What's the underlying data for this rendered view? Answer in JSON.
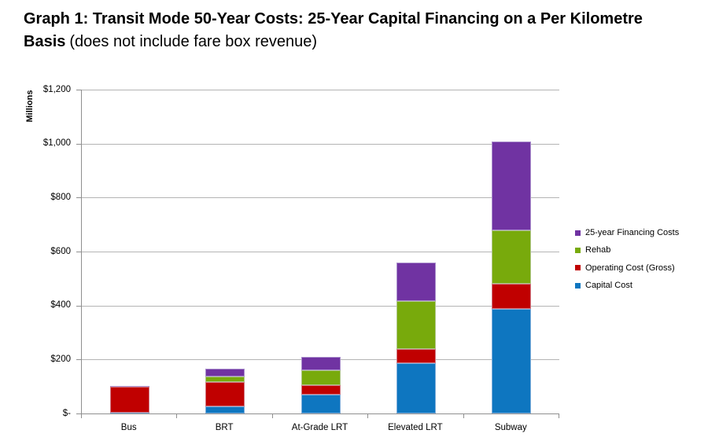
{
  "page": {
    "title_bold": "Graph 1: Transit Mode 50-Year Costs: 25-Year Capital Financing on a Per Kilometre Basis",
    "title_note": "(does not include fare box revenue)"
  },
  "chart_data": {
    "type": "bar",
    "stacked": true,
    "title": "Graph 1: Transit Mode 50-Year Costs: 25-Year Capital Financing on a Per Kilometre Basis (does not include fare box revenue)",
    "xlabel": "",
    "ylabel": "Millions",
    "ylim": [
      0,
      1200
    ],
    "grid": true,
    "legend_position": "right",
    "yticks": [
      {
        "value": 1200,
        "label": "$1,200"
      },
      {
        "value": 1000,
        "label": "$1,000"
      },
      {
        "value": 800,
        "label": "$800"
      },
      {
        "value": 600,
        "label": "$600"
      },
      {
        "value": 400,
        "label": "$400"
      },
      {
        "value": 200,
        "label": "$200"
      },
      {
        "value": 0,
        "label": "$-"
      }
    ],
    "categories": [
      "Bus",
      "BRT",
      "At-Grade LRT",
      "Elevated LRT",
      "Subway"
    ],
    "series": [
      {
        "name": "Capital Cost",
        "color": "#0e76c0",
        "values": [
          3,
          25,
          70,
          187,
          386
        ]
      },
      {
        "name": "Operating Cost (Gross)",
        "color": "#c00000",
        "values": [
          97,
          91,
          36,
          52,
          94
        ]
      },
      {
        "name": "Rehab",
        "color": "#78aa0c",
        "values": [
          0,
          20,
          53,
          177,
          200
        ]
      },
      {
        "name": "25-year Financing Costs",
        "color": "#7033a2",
        "values": [
          3,
          29,
          50,
          144,
          328
        ]
      }
    ],
    "totals": [
      103,
      165,
      209,
      560,
      1008
    ],
    "legend": [
      "25-year Financing Costs",
      "Rehab",
      "Operating Cost (Gross)",
      "Capital Cost"
    ]
  }
}
